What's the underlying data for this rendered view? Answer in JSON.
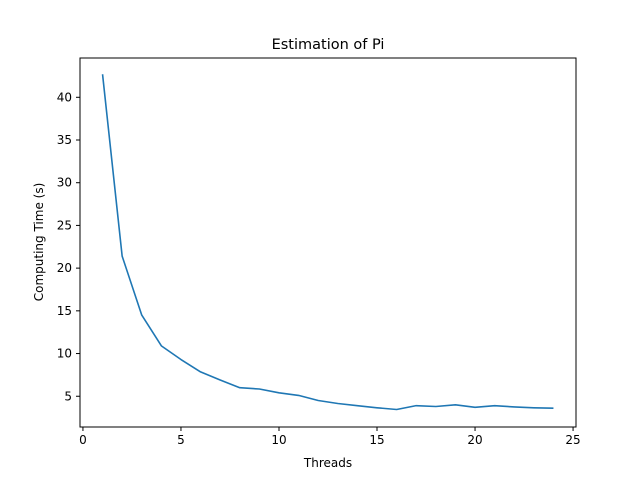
{
  "chart_data": {
    "type": "line",
    "title": "Estimation of Pi",
    "xlabel": "Threads",
    "ylabel": "Computing Time (s)",
    "xlim": [
      -0.15,
      25.15
    ],
    "ylim": [
      1.4,
      44.6
    ],
    "xticks": [
      0,
      5,
      10,
      15,
      20,
      25
    ],
    "yticks": [
      5,
      10,
      15,
      20,
      25,
      30,
      35,
      40
    ],
    "grid": false,
    "line_color": "#1f77b4",
    "series": [
      {
        "x": [
          1,
          2,
          3,
          4,
          5,
          6,
          7,
          8,
          9,
          10,
          11,
          12,
          13,
          14,
          15,
          16,
          17,
          18,
          19,
          20,
          21,
          22,
          23,
          24
        ],
        "y": [
          42.7,
          21.4,
          14.5,
          10.9,
          9.3,
          7.85,
          6.9,
          6.0,
          5.85,
          5.4,
          5.1,
          4.5,
          4.15,
          3.9,
          3.65,
          3.45,
          3.9,
          3.8,
          4.0,
          3.7,
          3.9,
          3.75,
          3.65,
          3.6
        ]
      }
    ]
  }
}
